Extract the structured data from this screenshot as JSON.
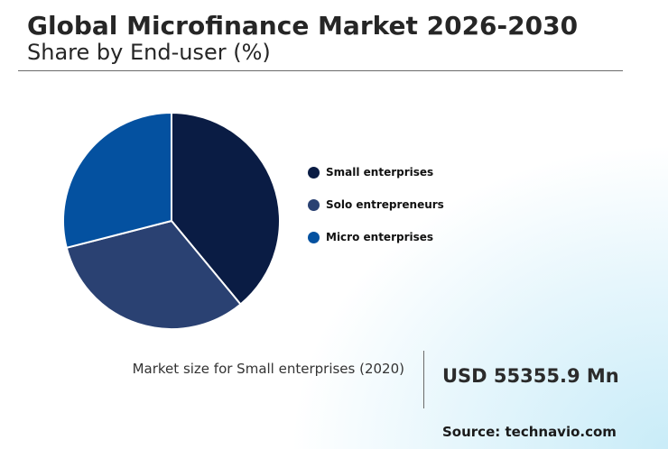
{
  "header": {
    "title": "Global Microfinance Market 2026-2030",
    "subtitle": "Share by End-user (%)"
  },
  "chart_data": {
    "type": "pie",
    "title": "Global Microfinance Market 2026-2030",
    "subtitle": "Share by End-user (%)",
    "legend_position": "right",
    "slices": [
      {
        "label": "Small enterprises",
        "value": 39,
        "color": "#0a1c44"
      },
      {
        "label": "Solo entrepreneurs",
        "value": 32,
        "color": "#2a4172"
      },
      {
        "label": "Micro enterprises",
        "value": 29,
        "color": "#0451a0"
      }
    ]
  },
  "footer": {
    "market_label": "Market size for Small enterprises (2020)",
    "market_value": "USD 55355.9 Mn",
    "source": "Source: technavio.com"
  }
}
